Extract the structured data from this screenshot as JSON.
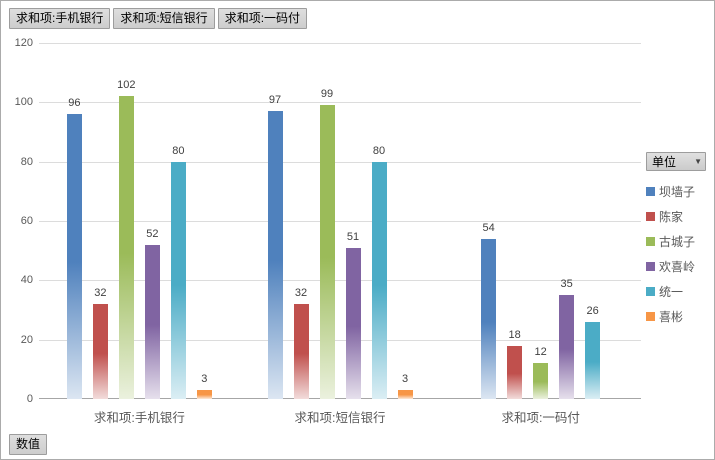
{
  "window": {
    "background": "#ffffff",
    "border_color": "#ababab"
  },
  "field_buttons": [
    {
      "label": "求和项:手机银行"
    },
    {
      "label": "求和项:短信银行"
    },
    {
      "label": "求和项:一码付"
    }
  ],
  "values_button": {
    "label": "数值"
  },
  "legend": {
    "field_label": "单位",
    "dropdown_icon": "▼",
    "position": "right"
  },
  "chart_data": {
    "type": "bar",
    "title": "",
    "xlabel": "",
    "ylabel": "",
    "categories": [
      "求和项:手机银行",
      "求和项:短信银行",
      "求和项:一码付"
    ],
    "series": [
      {
        "name": "坝墙子",
        "color": "#4f81bd",
        "light": "#dce6f2",
        "values": [
          96,
          97,
          54
        ]
      },
      {
        "name": "陈家",
        "color": "#c0504d",
        "light": "#f2dcdb",
        "values": [
          32,
          32,
          18
        ]
      },
      {
        "name": "古城子",
        "color": "#9bbb59",
        "light": "#ebf1de",
        "values": [
          102,
          99,
          12
        ]
      },
      {
        "name": "欢喜岭",
        "color": "#8064a2",
        "light": "#e6e0ec",
        "values": [
          52,
          51,
          35
        ]
      },
      {
        "name": "统一",
        "color": "#4bacc6",
        "light": "#dbeef4",
        "values": [
          80,
          80,
          26
        ]
      },
      {
        "name": "喜彬",
        "color": "#f79646",
        "light": "#fdeada",
        "values": [
          3,
          3,
          null
        ]
      }
    ],
    "ylim": [
      0,
      120
    ],
    "yticks": [
      0,
      20,
      40,
      60,
      80,
      100,
      120
    ],
    "grid": true,
    "data_labels": true,
    "legend_position": "right"
  }
}
